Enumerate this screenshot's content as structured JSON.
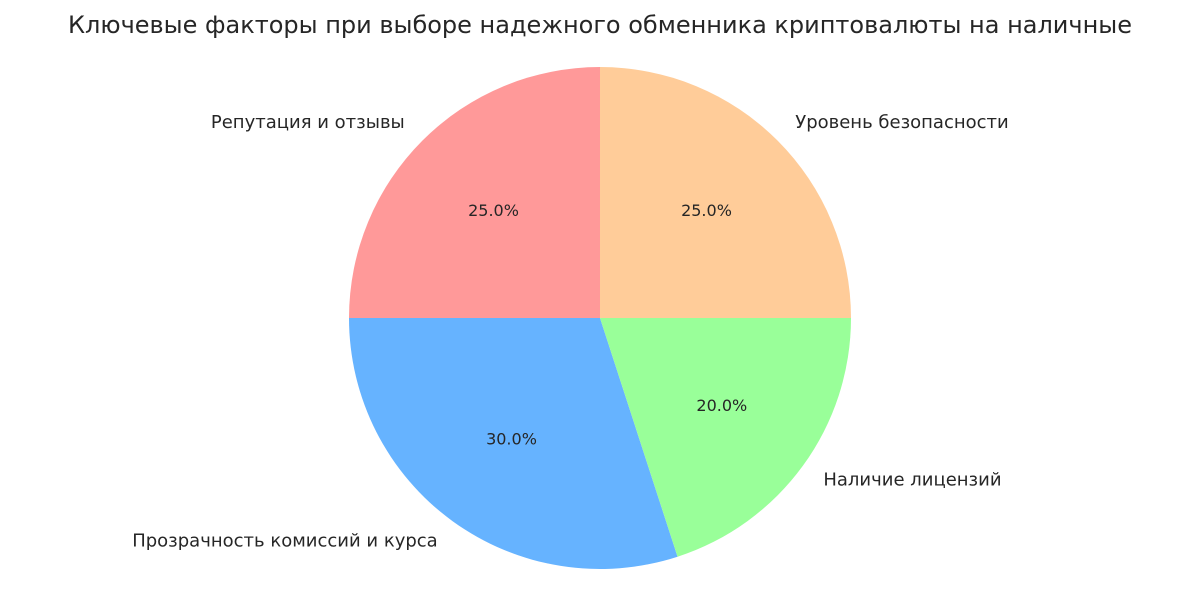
{
  "chart_data": {
    "type": "pie",
    "title": "Ключевые факторы при выборе надежного обменника криптовалюты на наличные",
    "categories": [
      "Репутация и отзывы",
      "Прозрачность комиссий и курса",
      "Наличие лицензий",
      "Уровень безопасности"
    ],
    "values": [
      25,
      30,
      20,
      25
    ],
    "value_labels": [
      "25.0%",
      "30.0%",
      "20.0%",
      "25.0%"
    ],
    "colors": [
      "#ff9999",
      "#66b3ff",
      "#99ff99",
      "#ffcc99"
    ],
    "start_angle": 90
  }
}
